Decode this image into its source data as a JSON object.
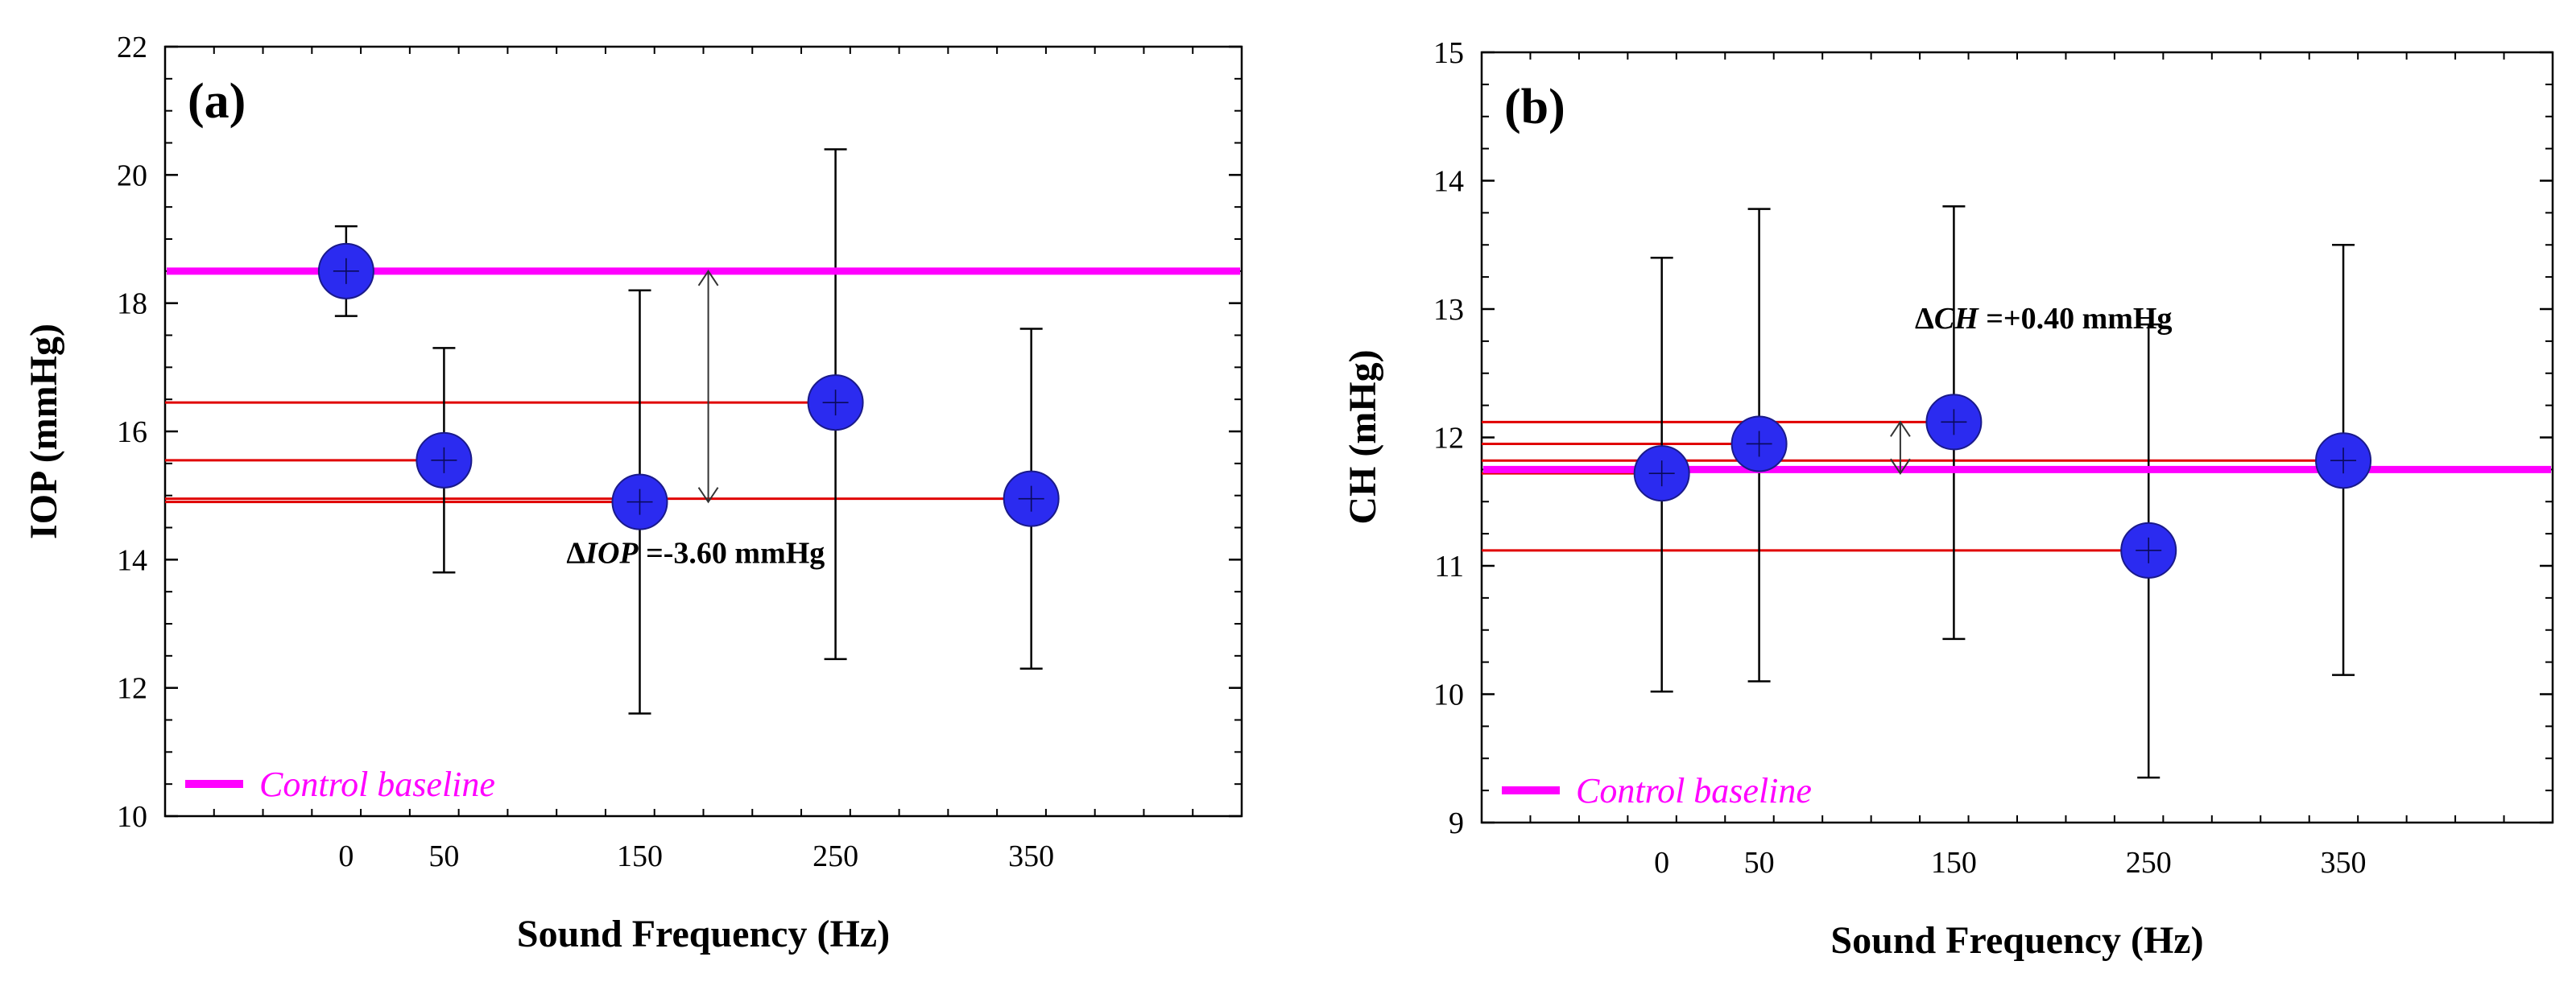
{
  "colors": {
    "marker": "#2b2bf0",
    "marker_edge": "#1a1a8a",
    "baseline": "#ff00ff",
    "guide": "#e00000",
    "errorbar": "#000000"
  },
  "chart_data": [
    {
      "type": "scatter",
      "panel_label": "(a)",
      "xlabel": "Sound Frequency (Hz)",
      "ylabel": "IOP (mmHg)",
      "ylim": [
        10,
        22
      ],
      "yticks": [
        "10",
        "12",
        "14",
        "16",
        "18",
        "20",
        "22"
      ],
      "x_tick_labels": [
        "0",
        "50",
        "150",
        "250",
        "350"
      ],
      "x_tick_slots": [
        1.85,
        2.85,
        4.85,
        6.85,
        8.85
      ],
      "x_slot_range": [
        0,
        11
      ],
      "points": [
        {
          "x_label": "0",
          "slot": 1.85,
          "y": 18.5,
          "err_low": 17.8,
          "err_high": 19.2
        },
        {
          "x_label": "50",
          "slot": 2.85,
          "y": 15.55,
          "err_low": 13.8,
          "err_high": 17.3
        },
        {
          "x_label": "150",
          "slot": 4.85,
          "y": 14.9,
          "err_low": 11.6,
          "err_high": 18.2
        },
        {
          "x_label": "250",
          "slot": 6.85,
          "y": 16.45,
          "err_low": 12.45,
          "err_high": 20.4
        },
        {
          "x_label": "350",
          "slot": 8.85,
          "y": 14.95,
          "err_low": 12.3,
          "err_high": 17.6
        }
      ],
      "baseline": {
        "label": "Control baseline",
        "y": 18.5
      },
      "guides": [
        {
          "y": 16.45,
          "to_slot": 6.85
        },
        {
          "y": 15.55,
          "to_slot": 2.85
        },
        {
          "y": 14.95,
          "to_slot": 8.85
        },
        {
          "y": 14.9,
          "to_slot": 4.85
        }
      ],
      "delta_arrow": {
        "slot": 5.55,
        "y_from": 14.9,
        "y_to": 18.5
      },
      "annotation": {
        "prefix": "Δ",
        "symbol": "IOP",
        "text": " =-3.60 mmHg",
        "slot": 4.1,
        "y": 13.95
      },
      "legend_position": "bottom-left"
    },
    {
      "type": "scatter",
      "panel_label": "(b)",
      "xlabel": "Sound Frequency (Hz)",
      "ylabel": "CH (mHg)",
      "ylim": [
        9,
        15
      ],
      "yticks": [
        "9",
        "10",
        "11",
        "12",
        "13",
        "14",
        "15"
      ],
      "x_tick_labels": [
        "0",
        "50",
        "150",
        "250",
        "350"
      ],
      "x_tick_slots": [
        1.85,
        2.85,
        4.85,
        6.85,
        8.85
      ],
      "x_slot_range": [
        0,
        11
      ],
      "points": [
        {
          "x_label": "0",
          "slot": 1.85,
          "y": 11.72,
          "err_low": 10.02,
          "err_high": 13.4
        },
        {
          "x_label": "50",
          "slot": 2.85,
          "y": 11.95,
          "err_low": 10.1,
          "err_high": 13.78
        },
        {
          "x_label": "150",
          "slot": 4.85,
          "y": 12.12,
          "err_low": 10.43,
          "err_high": 13.8
        },
        {
          "x_label": "250",
          "slot": 6.85,
          "y": 11.12,
          "err_low": 9.35,
          "err_high": 12.88
        },
        {
          "x_label": "350",
          "slot": 8.85,
          "y": 11.82,
          "err_low": 10.15,
          "err_high": 13.5
        }
      ],
      "baseline": {
        "label": "Control baseline",
        "y": 11.75
      },
      "guides": [
        {
          "y": 12.12,
          "to_slot": 4.85
        },
        {
          "y": 11.95,
          "to_slot": 2.85
        },
        {
          "y": 11.82,
          "to_slot": 8.85
        },
        {
          "y": 11.72,
          "to_slot": 1.85
        },
        {
          "y": 11.12,
          "to_slot": 6.85
        }
      ],
      "delta_arrow": {
        "slot": 4.3,
        "y_from": 11.72,
        "y_to": 12.12
      },
      "annotation": {
        "prefix": "Δ",
        "symbol": "CH",
        "text": " =+0.40 mmHg",
        "slot": 4.45,
        "y": 12.85
      },
      "legend_position": "bottom-left"
    }
  ]
}
